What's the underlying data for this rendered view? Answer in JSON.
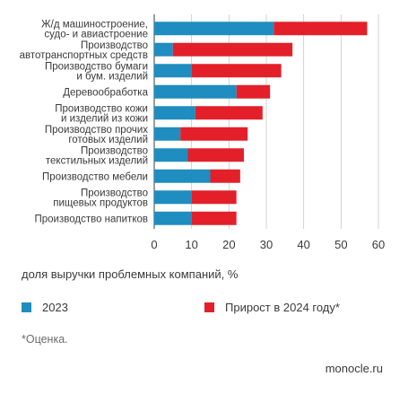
{
  "chart_data": {
    "type": "bar",
    "orientation": "horizontal",
    "stacked": true,
    "categories": [
      [
        "Ж/д машиностроение,",
        "судо- и авиастроение"
      ],
      [
        "Производство",
        "автотранспортных средств"
      ],
      [
        "Производство бумаги",
        "и бум. изделий"
      ],
      [
        "Деревообработка"
      ],
      [
        "Производство кожи",
        "и изделий из кожи"
      ],
      [
        "Производство прочих",
        "готовых изделий"
      ],
      [
        "Производство",
        "текстильных изделий"
      ],
      [
        "Производство мебели"
      ],
      [
        "Производство",
        "пищевых продуктов"
      ],
      [
        "Производство напитков"
      ]
    ],
    "series": [
      {
        "name": "2023",
        "color": "#1f8dbf",
        "values": [
          32,
          5,
          10,
          22,
          11,
          7,
          9,
          15,
          10,
          10
        ]
      },
      {
        "name": "Прирост в 2024 году*",
        "color": "#e3202a",
        "values": [
          25,
          32,
          24,
          9,
          18,
          18,
          15,
          8,
          12,
          12
        ]
      }
    ],
    "xlim": [
      0,
      60
    ],
    "xticks": [
      "0",
      "10",
      "20",
      "30",
      "40",
      "50",
      "60"
    ],
    "xlabel": "доля выручки проблемных компаний, %",
    "ylabel": "",
    "grid": "vertical",
    "legend_position": "bottom"
  },
  "footnote": "*Оценка.",
  "source": "monocle.ru"
}
